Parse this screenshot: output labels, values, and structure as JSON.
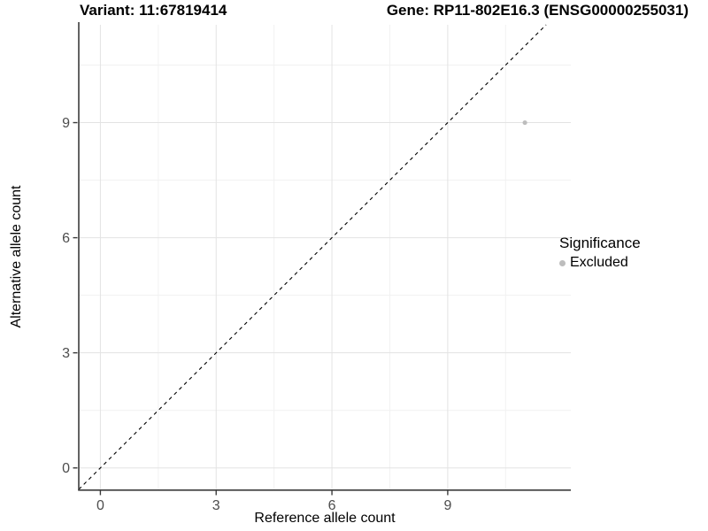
{
  "chart_data": {
    "type": "scatter",
    "title_left": "Variant: 11:67819414",
    "title_right": "Gene: RP11-802E16.3 (ENSG00000255031)",
    "xlabel": "Reference allele count",
    "ylabel": "Alternative allele count",
    "xticks": [
      0,
      3,
      6,
      9
    ],
    "yticks": [
      0,
      3,
      6,
      9
    ],
    "minor_xticks": [
      1.5,
      4.5,
      7.5,
      10.5
    ],
    "minor_yticks": [
      1.5,
      4.5,
      7.5,
      10.5
    ],
    "xlim": [
      -0.56,
      12.19
    ],
    "ylim": [
      -0.56,
      11.55
    ],
    "grid": true,
    "reference_line": {
      "type": "diagonal",
      "equation": "y = x",
      "style": "dashed",
      "color": "#000000"
    },
    "series": [
      {
        "name": "Excluded",
        "color": "#bdbdbd",
        "points": [
          {
            "x": 11,
            "y": 9
          }
        ]
      }
    ],
    "legend": {
      "title": "Significance",
      "position": "right"
    },
    "colors": {
      "background": "#ffffff",
      "grid_major": "#e3e3e3",
      "grid_minor": "#f1f1f1",
      "axis_line": "#3c3c3c",
      "tick_label": "#4d4d4d"
    }
  }
}
